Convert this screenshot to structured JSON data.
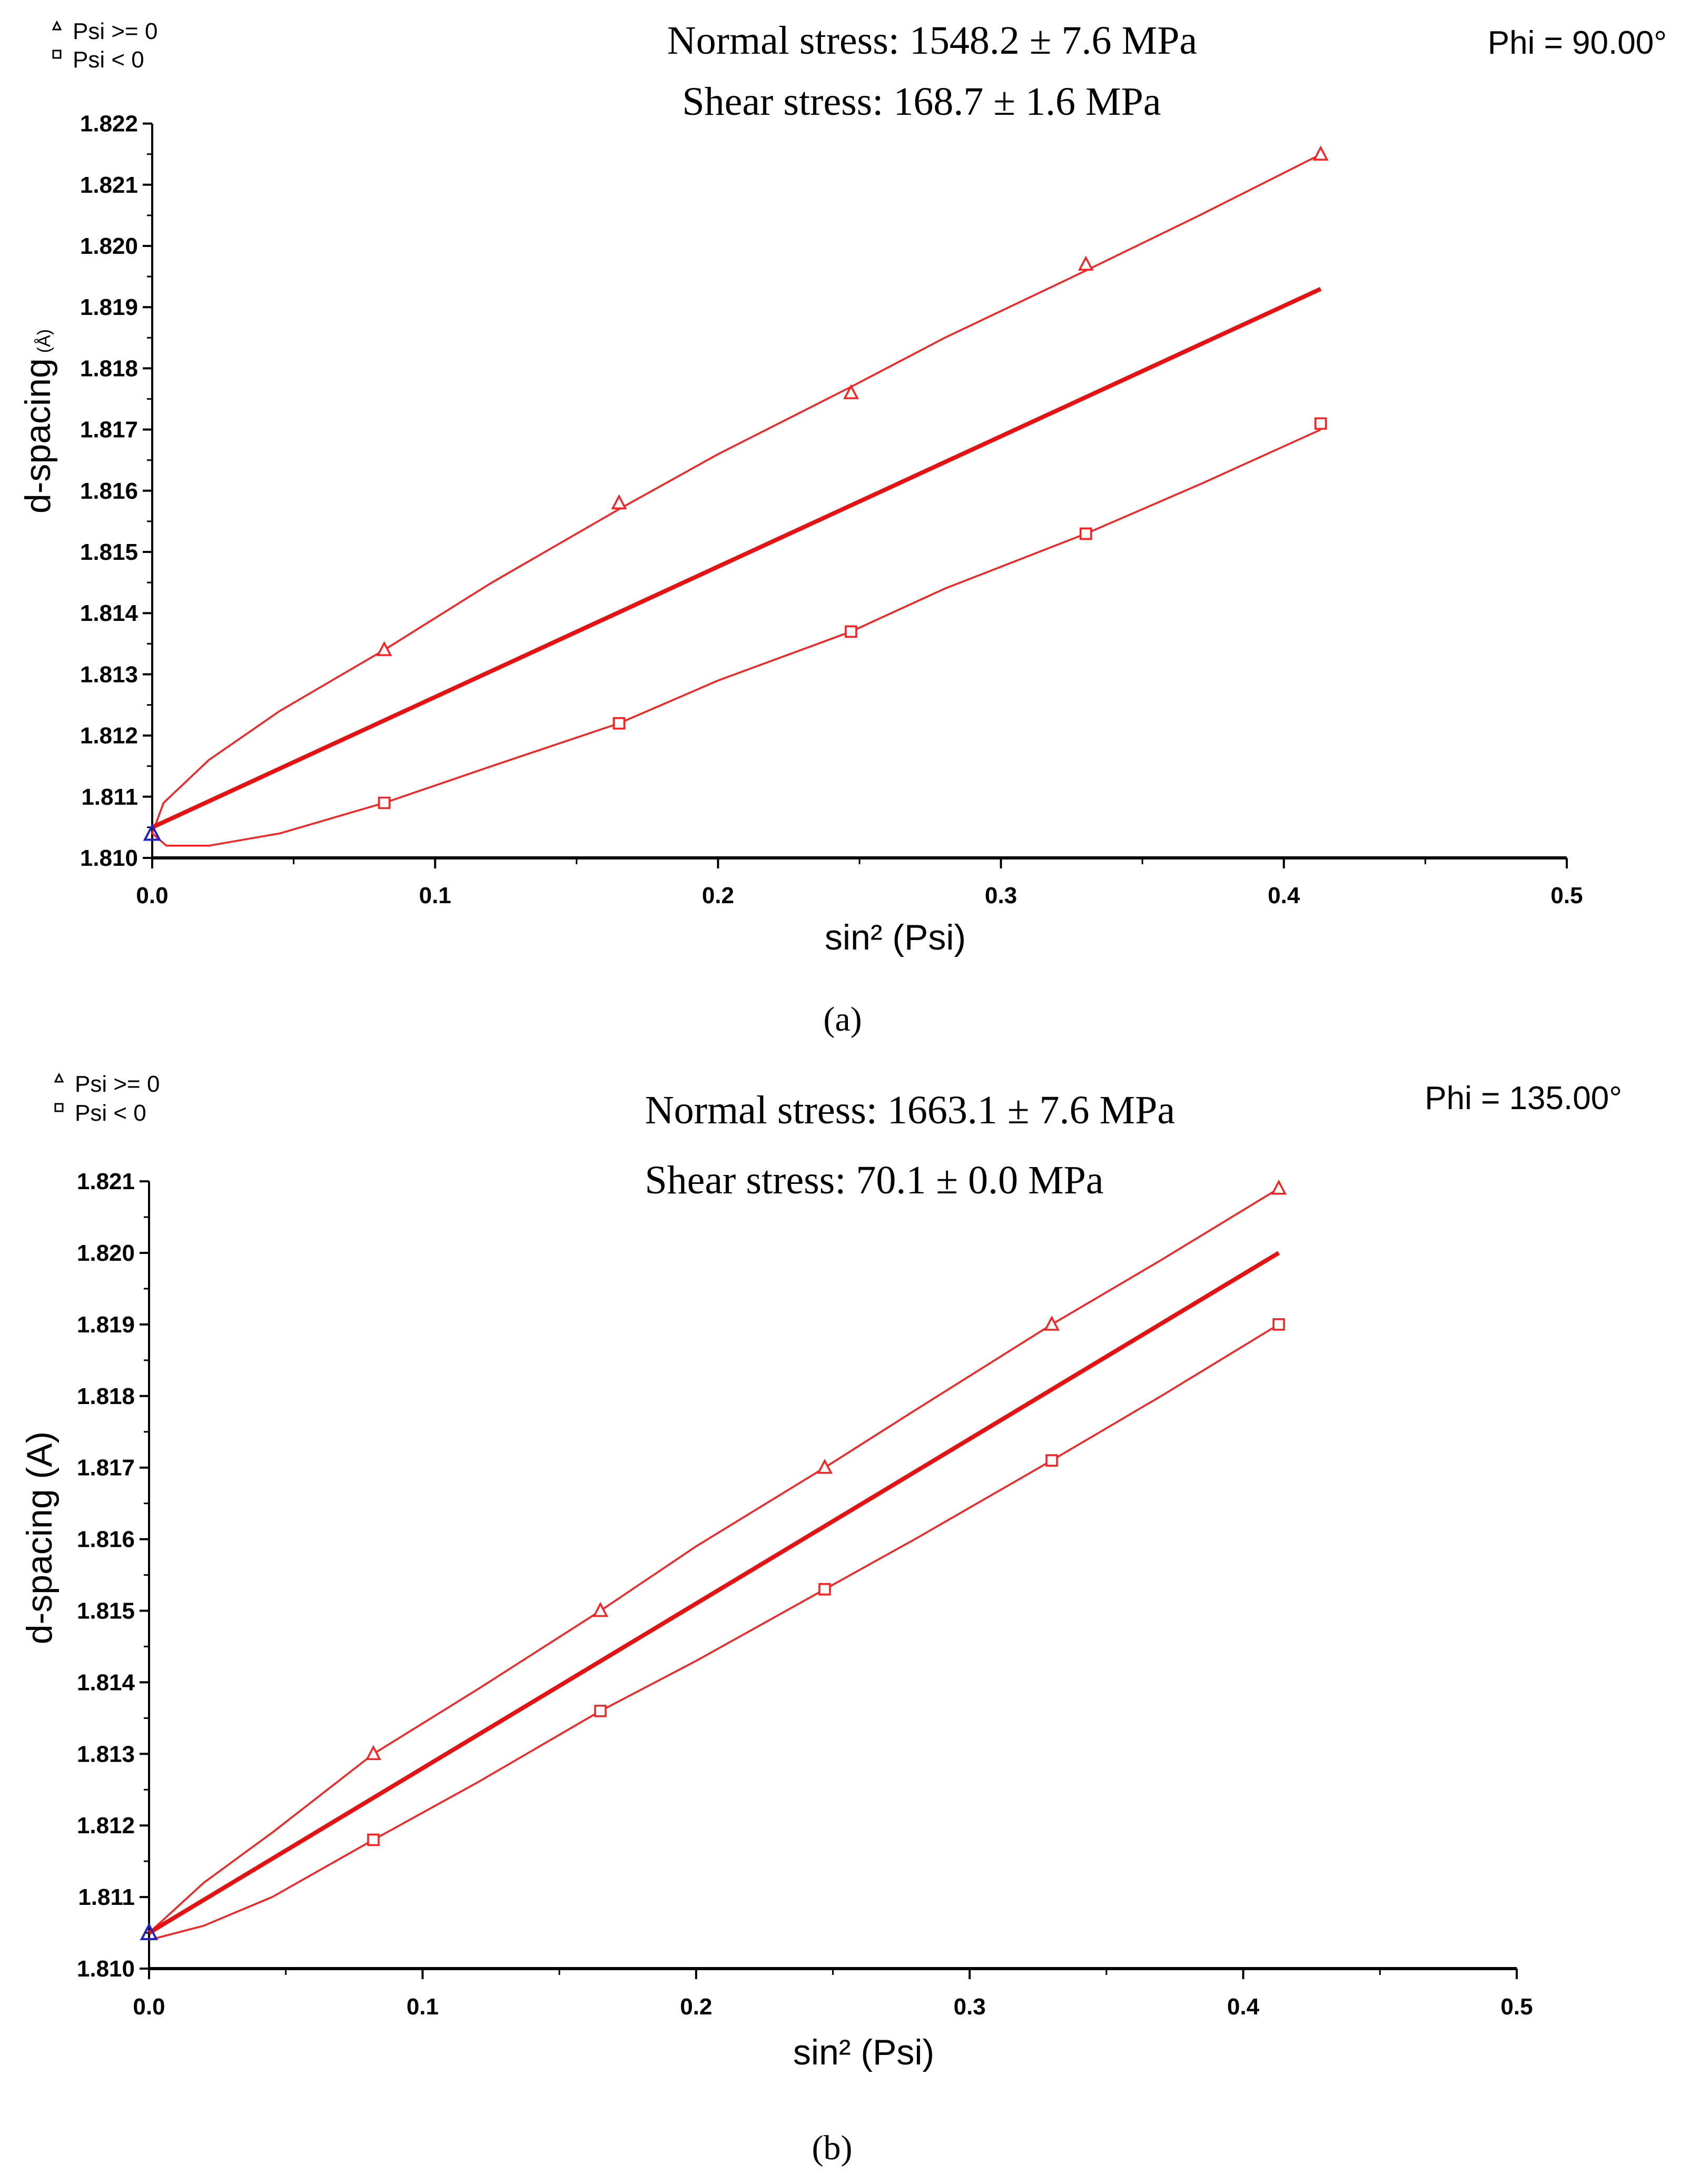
{
  "colors": {
    "series": "#ff1f1f",
    "fit": "#e81010",
    "origin_marker": "#2222cc",
    "axis": "#000000"
  },
  "chart_data": [
    {
      "panel_label": "(a)",
      "type": "line",
      "title": "Normal stress: 1548.2 ± 7.6 MPa",
      "subtitle": "Shear stress: 168.7 ± 1.6 MPa",
      "annotation": "Phi = 90.00°",
      "legend": {
        "position": "top-left",
        "items": [
          {
            "marker": "triangle",
            "label": "Psi >= 0"
          },
          {
            "marker": "square",
            "label": "Psi <   0"
          }
        ]
      },
      "xlabel": "sin² (Psi)",
      "ylabel": "d-spacing",
      "ylabel_unit": "(Å)",
      "xlim": [
        0,
        0.5
      ],
      "ylim": [
        1.81,
        1.822
      ],
      "x_ticks": [
        "0.0",
        "0.1",
        "0.2",
        "0.3",
        "0.4",
        "0.5"
      ],
      "y_ticks": [
        "1.810",
        "1.811",
        "1.812",
        "1.813",
        "1.814",
        "1.815",
        "1.816",
        "1.817",
        "1.818",
        "1.819",
        "1.820",
        "1.821",
        "1.822"
      ],
      "origin_point": {
        "x": 0.0,
        "y": 1.8104
      },
      "series": [
        {
          "marker": "triangle",
          "x": [
            0.082,
            0.165,
            0.247,
            0.33,
            0.413
          ],
          "y": [
            1.8134,
            1.8158,
            1.8176,
            1.8197,
            1.8215
          ],
          "curve": {
            "x": [
              0,
              0.004,
              0.02,
              0.045,
              0.082,
              0.12,
              0.165,
              0.2,
              0.247,
              0.28,
              0.33,
              0.37,
              0.413
            ],
            "y": [
              1.8104,
              1.8109,
              1.8116,
              1.8124,
              1.8134,
              1.8145,
              1.8157,
              1.8166,
              1.8177,
              1.8185,
              1.8196,
              1.8205,
              1.8215
            ]
          }
        },
        {
          "marker": "square",
          "x": [
            0.082,
            0.165,
            0.247,
            0.33,
            0.413
          ],
          "y": [
            1.8109,
            1.8122,
            1.8137,
            1.8153,
            1.8171
          ],
          "curve": {
            "x": [
              0,
              0.005,
              0.02,
              0.045,
              0.082,
              0.12,
              0.165,
              0.2,
              0.247,
              0.28,
              0.33,
              0.37,
              0.413
            ],
            "y": [
              1.8104,
              1.8102,
              1.8102,
              1.8104,
              1.8109,
              1.8115,
              1.8122,
              1.8129,
              1.8137,
              1.8144,
              1.8153,
              1.8161,
              1.817
            ]
          }
        },
        {
          "marker": "none",
          "role": "fit",
          "x": [
            0,
            0.413
          ],
          "y": [
            1.8105,
            1.8193
          ]
        }
      ]
    },
    {
      "panel_label": "(b)",
      "type": "line",
      "title": "Normal stress: 1663.1 ± 7.6 MPa",
      "subtitle": "Shear stress: 70.1 ± 0.0 MPa",
      "annotation": "Phi = 135.00°",
      "legend": {
        "position": "top-left",
        "items": [
          {
            "marker": "triangle",
            "label": "Psi >= 0"
          },
          {
            "marker": "square",
            "label": "Psi <   0"
          }
        ]
      },
      "xlabel": "sin² (Psi)",
      "ylabel": "d-spacing (A)",
      "xlim": [
        0,
        0.5
      ],
      "ylim": [
        1.81,
        1.821
      ],
      "x_ticks": [
        "0.0",
        "0.1",
        "0.2",
        "0.3",
        "0.4",
        "0.5"
      ],
      "y_ticks": [
        "1.810",
        "1.811",
        "1.812",
        "1.813",
        "1.814",
        "1.815",
        "1.816",
        "1.817",
        "1.818",
        "1.819",
        "1.820",
        "1.821"
      ],
      "origin_point": {
        "x": 0.0,
        "y": 1.8105
      },
      "series": [
        {
          "marker": "triangle",
          "x": [
            0.082,
            0.165,
            0.247,
            0.33,
            0.413
          ],
          "y": [
            1.813,
            1.815,
            1.817,
            1.819,
            1.8209
          ],
          "curve": {
            "x": [
              0,
              0.02,
              0.045,
              0.082,
              0.12,
              0.165,
              0.2,
              0.247,
              0.28,
              0.33,
              0.37,
              0.413
            ],
            "y": [
              1.8105,
              1.8112,
              1.8119,
              1.813,
              1.8139,
              1.815,
              1.8159,
              1.817,
              1.8178,
              1.819,
              1.8199,
              1.8209
            ]
          }
        },
        {
          "marker": "square",
          "x": [
            0.082,
            0.165,
            0.247,
            0.33,
            0.413
          ],
          "y": [
            1.8118,
            1.8136,
            1.8153,
            1.8171,
            1.819
          ],
          "curve": {
            "x": [
              0,
              0.02,
              0.045,
              0.082,
              0.12,
              0.165,
              0.2,
              0.247,
              0.28,
              0.33,
              0.37,
              0.413
            ],
            "y": [
              1.8104,
              1.8106,
              1.811,
              1.8118,
              1.8126,
              1.8136,
              1.8143,
              1.8153,
              1.816,
              1.8171,
              1.818,
              1.819
            ]
          }
        },
        {
          "marker": "none",
          "role": "fit",
          "x": [
            0,
            0.413
          ],
          "y": [
            1.8105,
            1.82
          ]
        }
      ]
    }
  ]
}
